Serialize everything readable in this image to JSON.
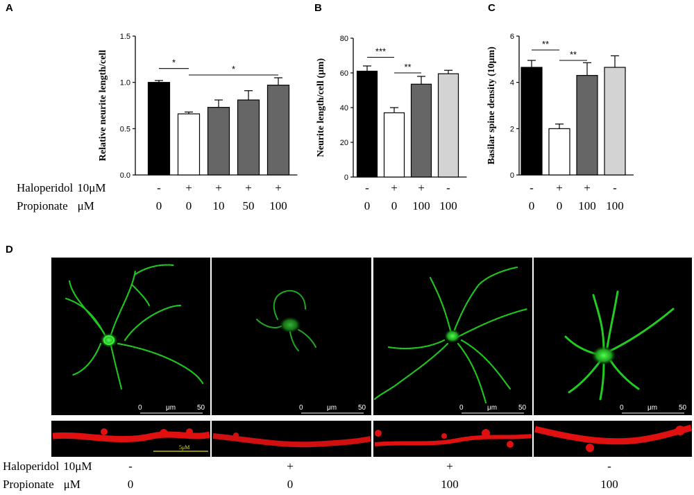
{
  "panel_letters": {
    "a": "A",
    "b": "B",
    "c": "C",
    "d": "D"
  },
  "row_labels": {
    "haloperidol": "Haloperidol",
    "haloperidol_dose": "10μM",
    "propionate": "Propionate",
    "propionate_unit": "μM"
  },
  "chart_data": [
    {
      "panel": "A",
      "type": "bar",
      "ylabel": "Relative neurite length/cell",
      "ylim": [
        0,
        1.5
      ],
      "yticks": [
        "0.0",
        "0.5",
        "1.0",
        "1.5"
      ],
      "bars": [
        {
          "value": 1.0,
          "error": 0.02,
          "fill": "#000000"
        },
        {
          "value": 0.66,
          "error": 0.02,
          "fill": "#ffffff"
        },
        {
          "value": 0.73,
          "error": 0.08,
          "fill": "#666666"
        },
        {
          "value": 0.81,
          "error": 0.1,
          "fill": "#666666"
        },
        {
          "value": 0.97,
          "error": 0.08,
          "fill": "#666666"
        }
      ],
      "haloperidol": [
        "-",
        "+",
        "+",
        "+",
        "+"
      ],
      "propionate": [
        "0",
        "0",
        "10",
        "50",
        "100"
      ],
      "significance": [
        {
          "from": 0,
          "to": 1,
          "y": 1.15,
          "label": "*"
        },
        {
          "from": 1,
          "to": 4,
          "y": 1.08,
          "label": "*"
        }
      ]
    },
    {
      "panel": "B",
      "type": "bar",
      "ylabel": "Neurite length/cell (μm)",
      "ylim": [
        0,
        80
      ],
      "yticks": [
        "0",
        "20",
        "40",
        "60",
        "80"
      ],
      "bars": [
        {
          "value": 61,
          "error": 3,
          "fill": "#000000"
        },
        {
          "value": 37,
          "error": 3,
          "fill": "#ffffff"
        },
        {
          "value": 53.5,
          "error": 4.5,
          "fill": "#666666"
        },
        {
          "value": 59.5,
          "error": 2,
          "fill": "#d3d3d3"
        }
      ],
      "haloperidol": [
        "-",
        "+",
        "+",
        "-"
      ],
      "propionate": [
        "0",
        "0",
        "100",
        "100"
      ],
      "significance": [
        {
          "from": 0,
          "to": 1,
          "y": 69,
          "label": "***"
        },
        {
          "from": 1,
          "to": 2,
          "y": 60,
          "label": "**"
        }
      ]
    },
    {
      "panel": "C",
      "type": "bar",
      "ylabel": "Basilar spine density (10μm)",
      "ylim": [
        0,
        6
      ],
      "yticks": [
        "0",
        "2",
        "4",
        "6"
      ],
      "bars": [
        {
          "value": 4.65,
          "error": 0.3,
          "fill": "#000000"
        },
        {
          "value": 2.0,
          "error": 0.2,
          "fill": "#ffffff"
        },
        {
          "value": 4.3,
          "error": 0.55,
          "fill": "#666666"
        },
        {
          "value": 4.65,
          "error": 0.5,
          "fill": "#d3d3d3"
        }
      ],
      "haloperidol": [
        "-",
        "+",
        "+",
        "-"
      ],
      "propionate": [
        "0",
        "0",
        "100",
        "100"
      ],
      "significance": [
        {
          "from": 0,
          "to": 1,
          "y": 5.4,
          "label": "**"
        },
        {
          "from": 1,
          "to": 2,
          "y": 4.95,
          "label": "**"
        }
      ]
    }
  ],
  "micrographs": {
    "scale_labels": [
      "0",
      "μm",
      "50"
    ],
    "spine_scale_label": "5μM",
    "columns": [
      {
        "haloperidol": "-",
        "propionate": "0"
      },
      {
        "haloperidol": "+",
        "propionate": "0"
      },
      {
        "haloperidol": "+",
        "propionate": "100"
      },
      {
        "haloperidol": "-",
        "propionate": "100"
      }
    ]
  }
}
